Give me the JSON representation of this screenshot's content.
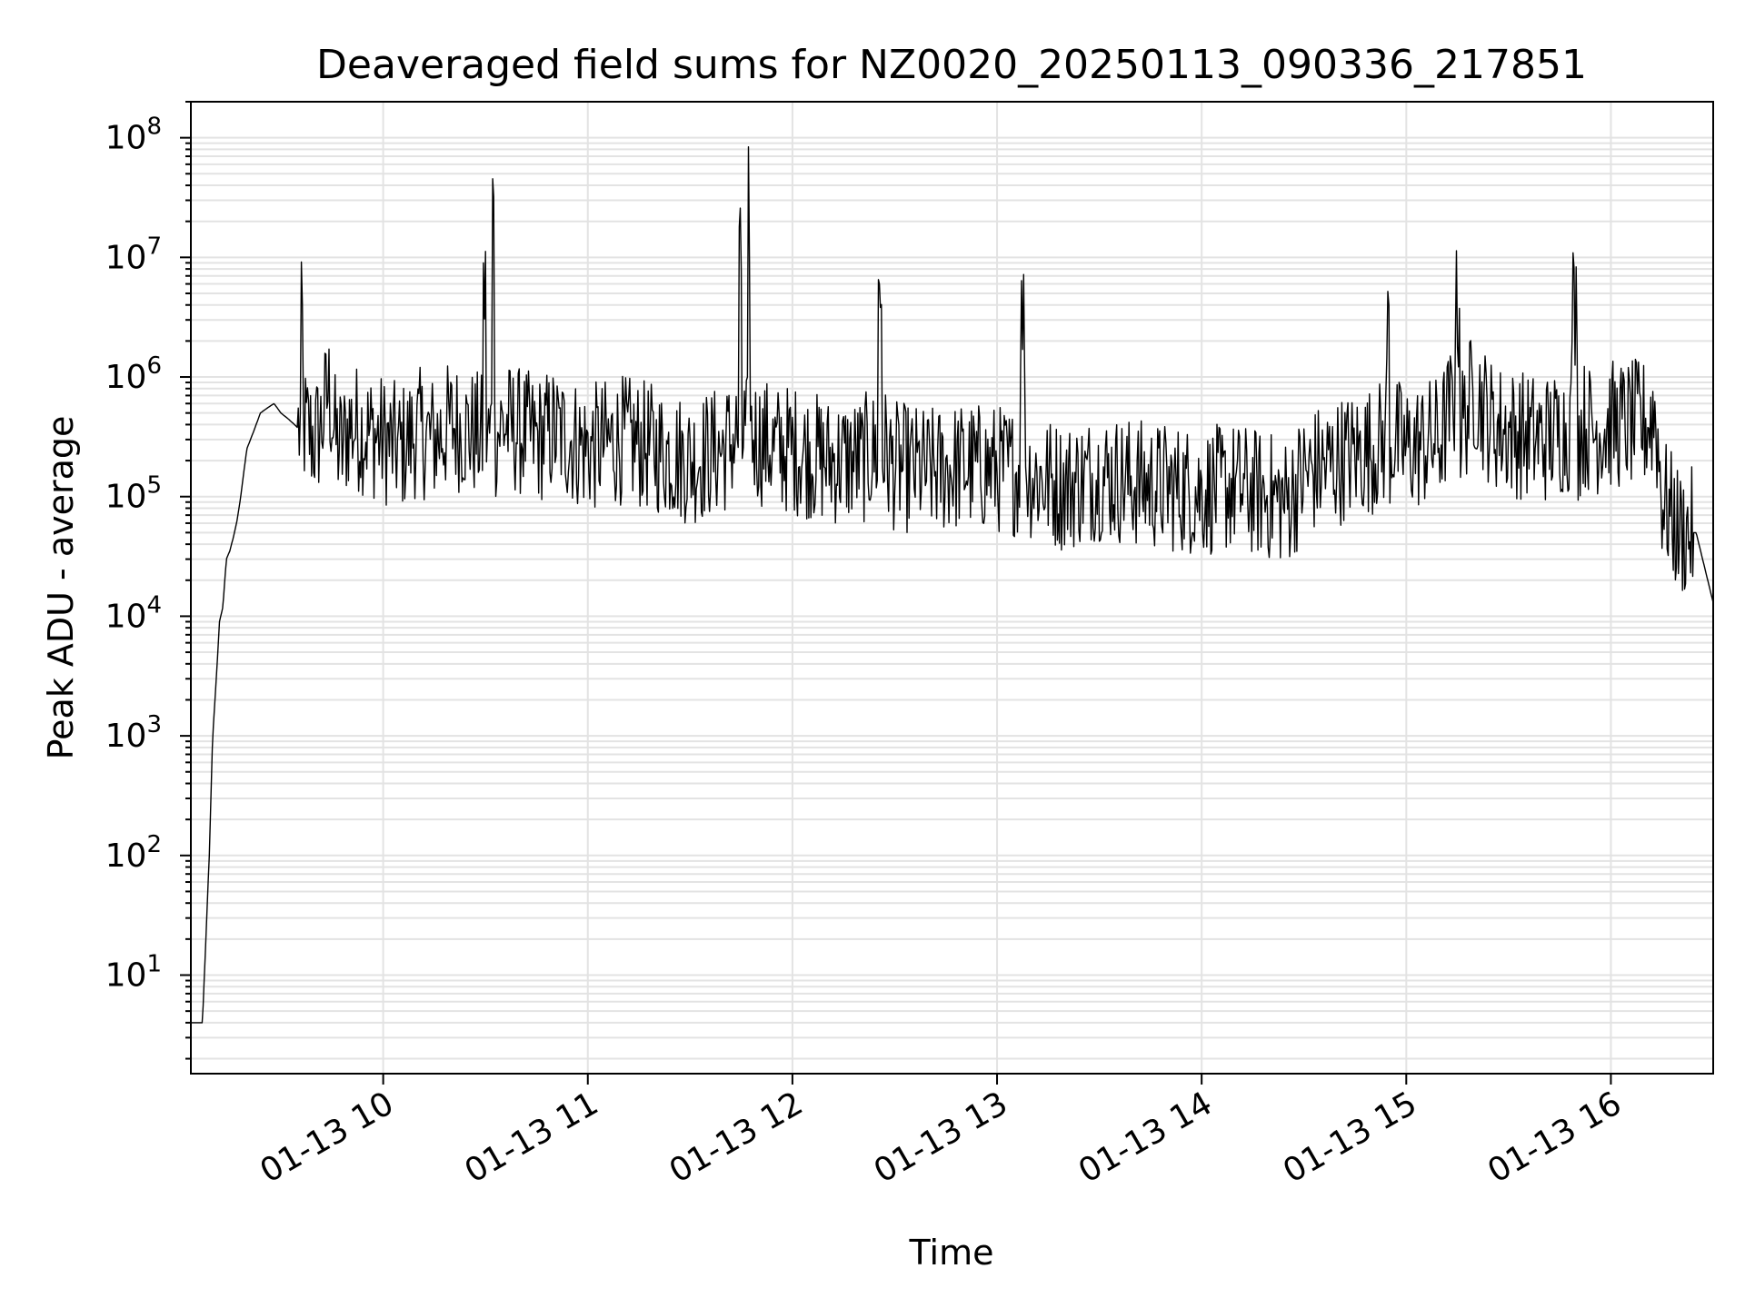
{
  "chart_data": {
    "type": "line",
    "title": "Deaveraged field sums for NZ0020_20250113_090336_217851",
    "xlabel": "Time",
    "ylabel": "Peak ADU - average",
    "yscale": "log",
    "ylim": [
      1.5,
      200000000
    ],
    "xlim": [
      "2025-01-13 09:03:36",
      "2025-01-13 16:30:00"
    ],
    "grid": true,
    "series_color": "#000000",
    "x_ticks": [
      "01-13 10",
      "01-13 11",
      "01-13 12",
      "01-13 13",
      "01-13 14",
      "01-13 15",
      "01-13 16"
    ],
    "y_ticks": [
      {
        "base": "10",
        "exp": "1"
      },
      {
        "base": "10",
        "exp": "2"
      },
      {
        "base": "10",
        "exp": "3"
      },
      {
        "base": "10",
        "exp": "4"
      },
      {
        "base": "10",
        "exp": "5"
      },
      {
        "base": "10",
        "exp": "6"
      },
      {
        "base": "10",
        "exp": "7"
      },
      {
        "base": "10",
        "exp": "8"
      }
    ],
    "series": [
      {
        "x": [
          "09:03",
          "09:05",
          "09:06",
          "09:07",
          "09:08",
          "09:09",
          "09:10",
          "09:11",
          "09:12",
          "09:13",
          "09:14",
          "09:15",
          "09:16",
          "09:17",
          "09:18",
          "09:19",
          "09:20",
          "09:22",
          "09:24",
          "09:26",
          "09:28",
          "09:30",
          "09:32",
          "09:34",
          "09:36",
          "09:38",
          "09:40",
          "09:42",
          "09:44",
          "09:46",
          "09:48",
          "09:50",
          "09:55",
          "10:00",
          "10:05",
          "10:10",
          "10:15",
          "10:20",
          "10:25",
          "10:30",
          "10:31",
          "10:32",
          "10:35",
          "10:40",
          "10:45",
          "10:50",
          "10:55",
          "11:00",
          "11:10",
          "11:20",
          "11:30",
          "11:40",
          "11:45",
          "11:46",
          "11:47",
          "11:50",
          "11:55",
          "12:00",
          "12:10",
          "12:20",
          "12:26",
          "12:27",
          "12:28",
          "12:30",
          "12:40",
          "12:50",
          "13:00",
          "13:08",
          "13:09",
          "13:10",
          "13:20",
          "13:30",
          "13:40",
          "13:50",
          "14:00",
          "14:10",
          "14:20",
          "14:25",
          "14:30",
          "14:40",
          "14:50",
          "14:55",
          "14:56",
          "15:00",
          "15:10",
          "15:15",
          "15:20",
          "15:25",
          "15:30",
          "15:40",
          "15:50",
          "15:52",
          "15:55",
          "16:00",
          "16:10",
          "16:12",
          "16:13",
          "16:15",
          "16:20",
          "16:25",
          "16:30"
        ],
        "y": [
          4,
          4,
          4,
          4,
          20,
          100,
          1000,
          2800,
          9000,
          12000,
          30000,
          35000,
          45000,
          60000,
          90000,
          150000,
          250000,
          350000,
          500000,
          550000,
          600000,
          500000,
          450000,
          400000,
          2600000,
          350000,
          300000,
          400000,
          800000,
          300000,
          250000,
          400000,
          350000,
          300000,
          250000,
          350000,
          300000,
          400000,
          350000,
          5000000,
          300000,
          81000000,
          400000,
          350000,
          300000,
          350000,
          300000,
          250000,
          300000,
          250000,
          200000,
          250000,
          8000000,
          350000,
          26000000,
          300000,
          250000,
          250000,
          200000,
          200000,
          4700000,
          250000,
          200000,
          180000,
          160000,
          180000,
          170000,
          3000000,
          160000,
          150000,
          120000,
          150000,
          130000,
          120000,
          110000,
          120000,
          100000,
          90000,
          150000,
          200000,
          250000,
          2500000,
          300000,
          250000,
          300000,
          3500000,
          800000,
          400000,
          350000,
          300000,
          4000000,
          400000,
          350000,
          400000,
          400000,
          450000,
          500000,
          100000,
          50000,
          50000,
          13000
        ]
      }
    ]
  }
}
